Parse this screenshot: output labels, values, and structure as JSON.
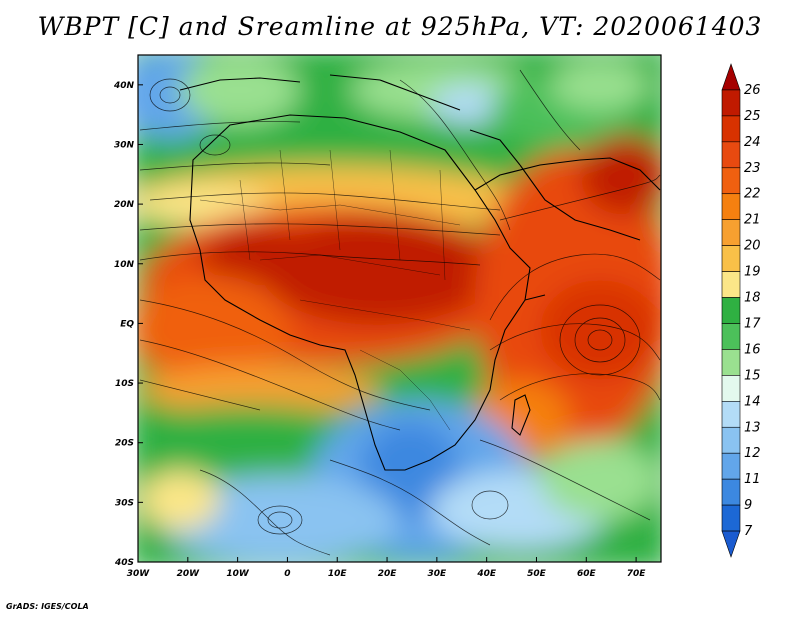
{
  "title": "WBPT [C] and Sreamline at 925hPa, VT: 2020061403",
  "footer": "GrADS: IGES/COLA",
  "map": {
    "type": "filled contour with streamlines",
    "variable": "WBPT [C]",
    "level": "925hPa",
    "valid_time": "2020061403",
    "lon_range": [
      -30,
      75
    ],
    "lat_range": [
      -40,
      45
    ],
    "x_tick_labels": [
      "30W",
      "20W",
      "10W",
      "0",
      "10E",
      "20E",
      "30E",
      "40E",
      "50E",
      "60E",
      "70E"
    ],
    "x_tick_values": [
      -30,
      -20,
      -10,
      0,
      10,
      20,
      30,
      40,
      50,
      60,
      70
    ],
    "y_tick_labels": [
      "40N",
      "30N",
      "20N",
      "10N",
      "EQ",
      "10S",
      "20S",
      "30S",
      "40S"
    ],
    "y_tick_values": [
      40,
      30,
      20,
      10,
      0,
      -10,
      -20,
      -30,
      -40
    ]
  },
  "colorbar": {
    "labels": [
      "26",
      "25",
      "24",
      "23",
      "22",
      "21",
      "20",
      "19",
      "18",
      "17",
      "16",
      "15",
      "14",
      "13",
      "12",
      "11",
      "9",
      "7"
    ],
    "colors": [
      "#a50000",
      "#c01a00",
      "#d83200",
      "#e84a10",
      "#f06010",
      "#f58010",
      "#f7a030",
      "#f9c048",
      "#fbe688",
      "#2fb042",
      "#4cc05a",
      "#9ae090",
      "#e3f9ee",
      "#b3dcf7",
      "#8ac3f1",
      "#62a6ea",
      "#3c88e0",
      "#1c68d5",
      "#1a5bd0"
    ]
  }
}
